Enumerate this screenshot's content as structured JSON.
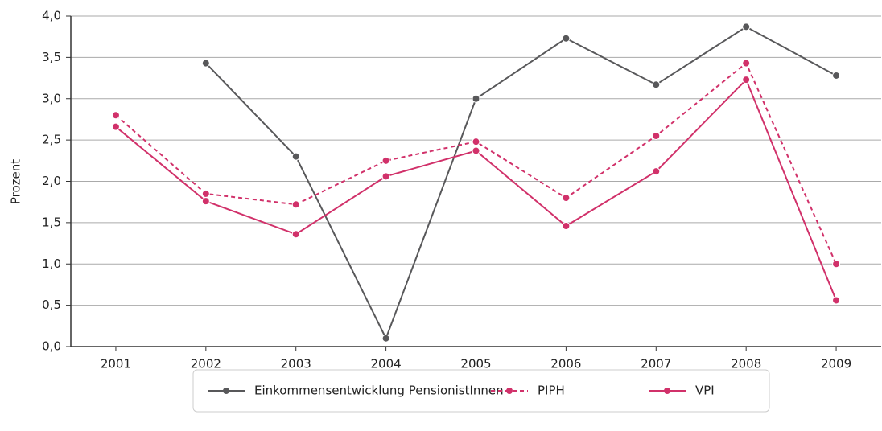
{
  "chart_data": {
    "type": "line",
    "y_label": "Prozent",
    "categories": [
      "2001",
      "2002",
      "2003",
      "2004",
      "2005",
      "2006",
      "2007",
      "2008",
      "2009"
    ],
    "series": [
      {
        "name": "Einkommensentwicklung PensionistInnen",
        "color": "#58585a",
        "dashed": false,
        "values": [
          null,
          3.43,
          2.3,
          0.1,
          3.0,
          3.73,
          3.17,
          3.87,
          3.28
        ]
      },
      {
        "name": "PIPH",
        "color": "#d1316a",
        "dashed": true,
        "values": [
          2.8,
          1.85,
          1.72,
          2.25,
          2.48,
          1.8,
          2.55,
          3.43,
          1.0
        ]
      },
      {
        "name": "VPI",
        "color": "#d1316a",
        "dashed": false,
        "values": [
          2.66,
          1.76,
          1.36,
          2.06,
          2.37,
          1.46,
          2.12,
          3.23,
          0.56
        ]
      }
    ],
    "ylim": [
      0,
      4
    ],
    "yticks": [
      {
        "value": 0,
        "label": "0,0"
      },
      {
        "value": 0.5,
        "label": "0,5"
      },
      {
        "value": 1,
        "label": "1,0"
      },
      {
        "value": 1.5,
        "label": "1,5"
      },
      {
        "value": 2,
        "label": "2,0"
      },
      {
        "value": 2.5,
        "label": "2,5"
      },
      {
        "value": 3,
        "label": "3,0"
      },
      {
        "value": 3.5,
        "label": "3,5"
      },
      {
        "value": 4,
        "label": "4,0"
      }
    ],
    "grid": true
  }
}
